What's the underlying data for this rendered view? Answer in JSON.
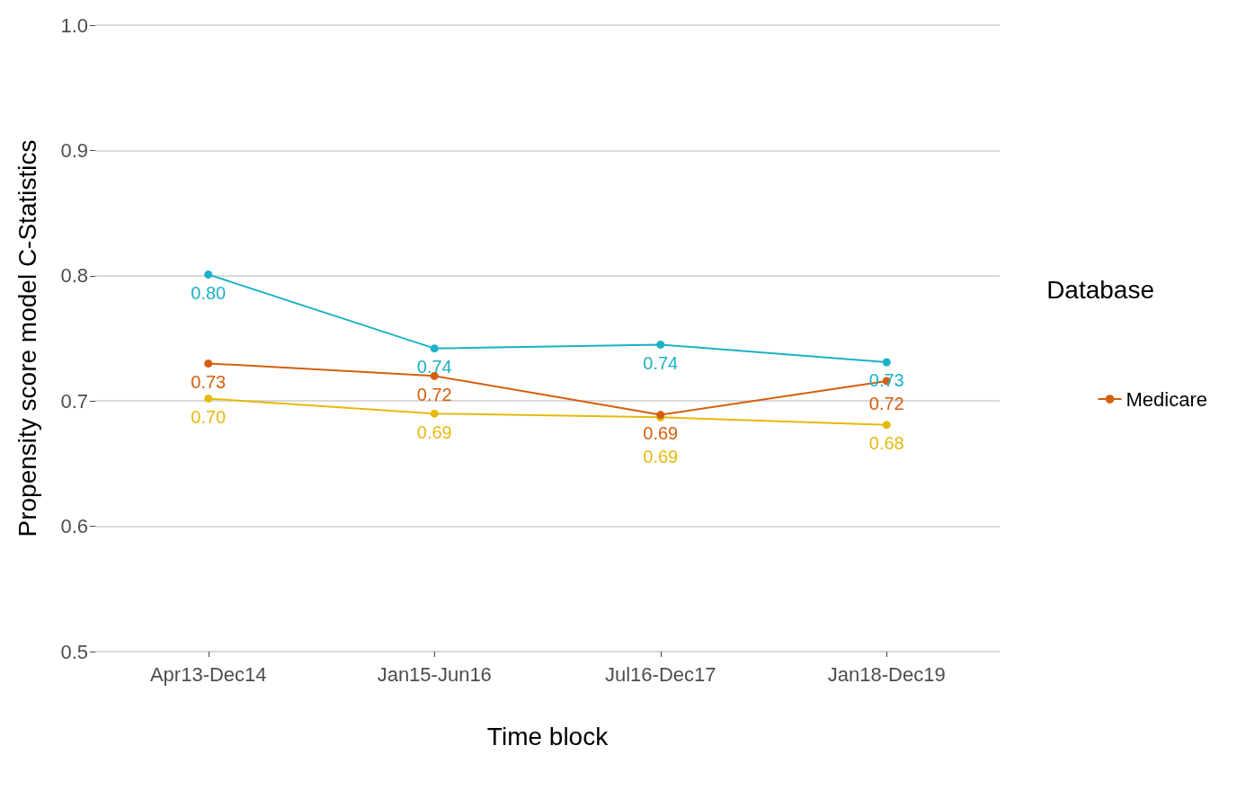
{
  "chart_data": {
    "type": "line",
    "xlabel": "Time block",
    "ylabel": "Propensity score model C-Statistics",
    "legend_title": "Database",
    "categories": [
      "Apr13-Dec14",
      "Jan15-Jun16",
      "Jul16-Dec17",
      "Jan18-Dec19"
    ],
    "series": [
      {
        "color": "#1ab2c6",
        "values": [
          0.801,
          0.742,
          0.745,
          0.731
        ],
        "value_labels": [
          "0.80",
          "0.74",
          "0.74",
          "0.73"
        ]
      },
      {
        "color": "#e6b90f",
        "values": [
          0.702,
          0.69,
          0.687,
          0.681
        ],
        "value_labels": [
          "0.70",
          "0.69",
          "0.69",
          "0.68"
        ]
      },
      {
        "name": "Medicare",
        "color": "#d55e0c",
        "values": [
          0.73,
          0.72,
          0.689,
          0.716
        ],
        "value_labels": [
          "0.73",
          "0.72",
          "0.69",
          "0.72"
        ]
      }
    ],
    "ylim": [
      0.5,
      1.0
    ],
    "yticks": [
      0.5,
      0.6,
      0.7,
      0.8,
      0.9,
      {
        "value": 1,
        "label": "1.0"
      }
    ],
    "grid": "y",
    "legend": "right",
    "marker": "circle",
    "line_style": "solid"
  }
}
